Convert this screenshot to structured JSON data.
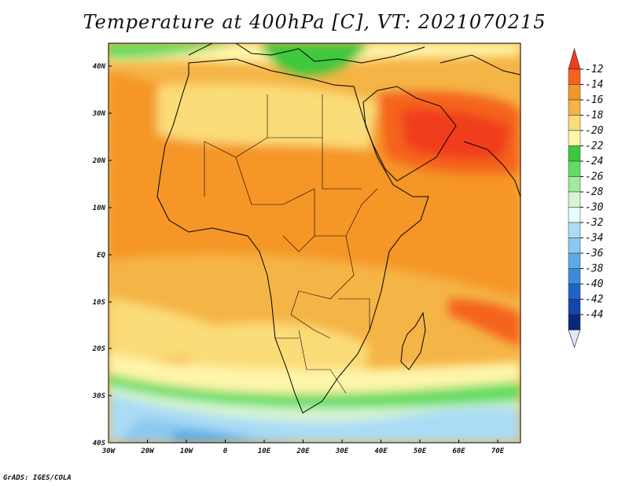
{
  "title": "Temperature at 400hPa [C], VT: 2021070215",
  "credit": "GrADS: IGES/COLA",
  "map": {
    "lon_range": [
      -30,
      75
    ],
    "lat_range": [
      -40,
      45
    ],
    "lon_ticks": [
      "30W",
      "20W",
      "10W",
      "0",
      "10E",
      "20E",
      "30E",
      "40E",
      "50E",
      "60E",
      "70E"
    ],
    "lat_ticks": [
      "40N",
      "30N",
      "20N",
      "10N",
      "EQ",
      "10S",
      "20S",
      "30S",
      "40S"
    ]
  },
  "colorbar": {
    "labels": [
      "-12",
      "-14",
      "-16",
      "-18",
      "-20",
      "-22",
      "-24",
      "-26",
      "-28",
      "-30",
      "-32",
      "-34",
      "-36",
      "-38",
      "-40",
      "-42",
      "-44"
    ],
    "colors": [
      "#f03c1e",
      "#f5641e",
      "#f59628",
      "#f5b446",
      "#fadc78",
      "#fff5aa",
      "#3cc83c",
      "#64dc64",
      "#a0eb9b",
      "#d7f5d2",
      "#e6fffa",
      "#aadcf5",
      "#8cc8f0",
      "#5aaae6",
      "#3c8cdc",
      "#1e64c8",
      "#1446aa",
      "#0a2878",
      "#e6e6fa"
    ]
  },
  "colors": {
    "land_outline": "#000000",
    "background": "#ffffff"
  }
}
